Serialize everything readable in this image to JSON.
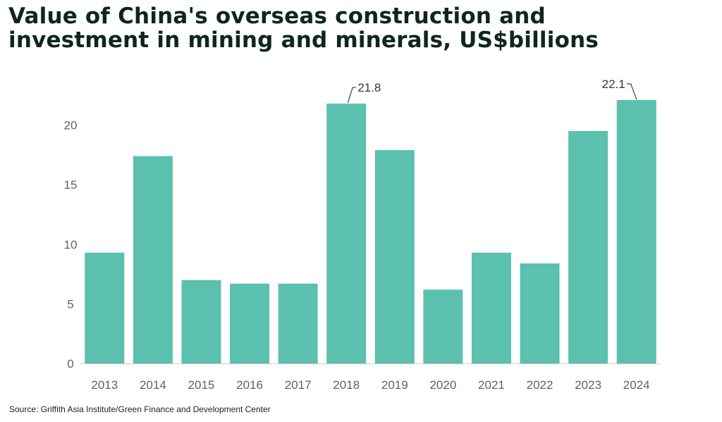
{
  "title_lines": [
    "Value of China's overseas construction and",
    "investment in mining and minerals, US$billions"
  ],
  "source": "Source: Griffith Asia Institute/Green Finance and Development Center",
  "colors": {
    "bar": "#5bc0ad",
    "baseline": "#cfcfcf",
    "tick_text": "#6b5e57",
    "title": "#0f2521"
  },
  "chart_data": {
    "type": "bar",
    "categories": [
      "2013",
      "2014",
      "2015",
      "2016",
      "2017",
      "2018",
      "2019",
      "2020",
      "2021",
      "2022",
      "2023",
      "2024"
    ],
    "values": [
      9.3,
      17.4,
      7.0,
      6.7,
      6.7,
      21.8,
      17.9,
      6.2,
      9.3,
      8.4,
      19.5,
      22.1
    ],
    "yticks": [
      0,
      5,
      10,
      15,
      20
    ],
    "ylim": [
      0,
      22.1
    ],
    "annotations": [
      {
        "category": "2018",
        "label": "21.8"
      },
      {
        "category": "2024",
        "label": "22.1"
      }
    ],
    "grid": false,
    "legend": "none",
    "xlabel": "",
    "ylabel": ""
  }
}
